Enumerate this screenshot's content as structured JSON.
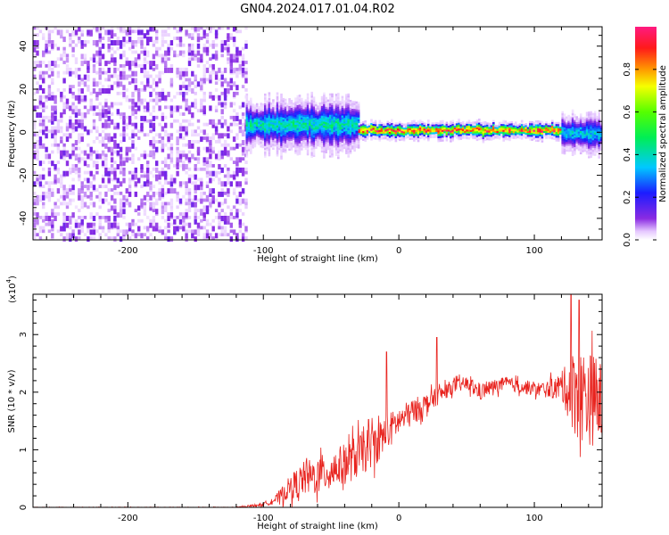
{
  "figure": {
    "title": "GN04.2024.017.01.04.R02"
  },
  "chart_data": [
    {
      "type": "heatmap",
      "title": "GN04.2024.017.01.04.R02",
      "xlabel": "Height of straight line (km)",
      "ylabel": "Frequency (Hz)",
      "xlim": [
        -270,
        150
      ],
      "ylim": [
        -50,
        49
      ],
      "x_ticks": [
        -200,
        -100,
        0,
        100
      ],
      "x_tick_labels": [
        "-200",
        "-100",
        "0",
        "100"
      ],
      "y_ticks": [
        -40,
        -20,
        0,
        20,
        40
      ],
      "y_tick_labels": [
        "-40",
        "-20",
        "0",
        "20",
        "40"
      ],
      "colorbar": {
        "label": "Normalized spectral amplitude",
        "range": [
          0,
          1
        ],
        "ticks": [
          0.0,
          0.2,
          0.4,
          0.6,
          0.8
        ],
        "tick_labels": [
          "0.0",
          "0.2",
          "0.4",
          "0.6",
          "0.8"
        ],
        "colormap": "rainbow (white-violet-blue-cyan-green-yellow-red-magenta)"
      },
      "regions": [
        {
          "x_range": [
            -270,
            -113
          ],
          "description_key": "broadband noise",
          "freq_range": [
            -50,
            49
          ],
          "typical_amplitude": 0.05
        },
        {
          "x_range": [
            -113,
            -30
          ],
          "freq_center": 3,
          "freq_halfwidth": 8,
          "peak_amplitude": 0.45
        },
        {
          "x_range": [
            -30,
            120
          ],
          "freq_center": 0.5,
          "freq_halfwidth": 2.5,
          "peak_amplitude": 0.95
        },
        {
          "x_range": [
            120,
            150
          ],
          "freq_center": -1,
          "freq_halfwidth": 6,
          "peak_amplitude": 0.4
        }
      ]
    },
    {
      "type": "line",
      "xlabel": "Height of straight line (km)",
      "ylabel": "SNR (10 * v/v)",
      "multiplier_label": "(x10",
      "multiplier_exp": "4",
      "multiplier_close": ")",
      "xlim": [
        -270,
        150
      ],
      "ylim": [
        0,
        3.7
      ],
      "x_ticks": [
        -200,
        -100,
        0,
        100
      ],
      "x_tick_labels": [
        "-200",
        "-100",
        "0",
        "100"
      ],
      "y_ticks": [
        0,
        1,
        2,
        3
      ],
      "y_tick_labels": [
        "0",
        "1",
        "2",
        "3"
      ],
      "series": [
        {
          "color": "#e8231e",
          "envelope": [
            {
              "x": -270,
              "mean": 0.0,
              "spread": 0.01
            },
            {
              "x": -120,
              "mean": 0.0,
              "spread": 0.01
            },
            {
              "x": -100,
              "mean": 0.05,
              "spread": 0.05
            },
            {
              "x": -90,
              "mean": 0.15,
              "spread": 0.15
            },
            {
              "x": -80,
              "mean": 0.35,
              "spread": 0.35
            },
            {
              "x": -70,
              "mean": 0.5,
              "spread": 0.5
            },
            {
              "x": -60,
              "mean": 0.55,
              "spread": 0.55
            },
            {
              "x": -50,
              "mean": 0.65,
              "spread": 0.55
            },
            {
              "x": -40,
              "mean": 0.75,
              "spread": 0.6
            },
            {
              "x": -30,
              "mean": 0.9,
              "spread": 0.65
            },
            {
              "x": -20,
              "mean": 1.05,
              "spread": 0.6
            },
            {
              "x": -10,
              "mean": 1.25,
              "spread": 0.6
            },
            {
              "x": 0,
              "mean": 1.5,
              "spread": 0.4
            },
            {
              "x": 10,
              "mean": 1.65,
              "spread": 0.4
            },
            {
              "x": 20,
              "mean": 1.8,
              "spread": 0.3
            },
            {
              "x": 30,
              "mean": 1.95,
              "spread": 0.25
            },
            {
              "x": 40,
              "mean": 2.1,
              "spread": 0.2
            },
            {
              "x": 50,
              "mean": 2.15,
              "spread": 0.2
            },
            {
              "x": 60,
              "mean": 2.0,
              "spread": 0.25
            },
            {
              "x": 70,
              "mean": 2.1,
              "spread": 0.2
            },
            {
              "x": 80,
              "mean": 2.15,
              "spread": 0.2
            },
            {
              "x": 90,
              "mean": 2.1,
              "spread": 0.2
            },
            {
              "x": 100,
              "mean": 2.05,
              "spread": 0.2
            },
            {
              "x": 110,
              "mean": 2.05,
              "spread": 0.25
            },
            {
              "x": 120,
              "mean": 2.1,
              "spread": 0.4
            },
            {
              "x": 130,
              "mean": 2.0,
              "spread": 1.3
            },
            {
              "x": 140,
              "mean": 1.9,
              "spread": 1.4
            },
            {
              "x": 150,
              "mean": 1.8,
              "spread": 1.2
            }
          ],
          "spikes": [
            {
              "x": -9,
              "y": 2.7
            },
            {
              "x": 28,
              "y": 2.95
            },
            {
              "x": 127,
              "y": 3.7
            },
            {
              "x": 133,
              "y": 3.6
            }
          ]
        }
      ]
    }
  ]
}
